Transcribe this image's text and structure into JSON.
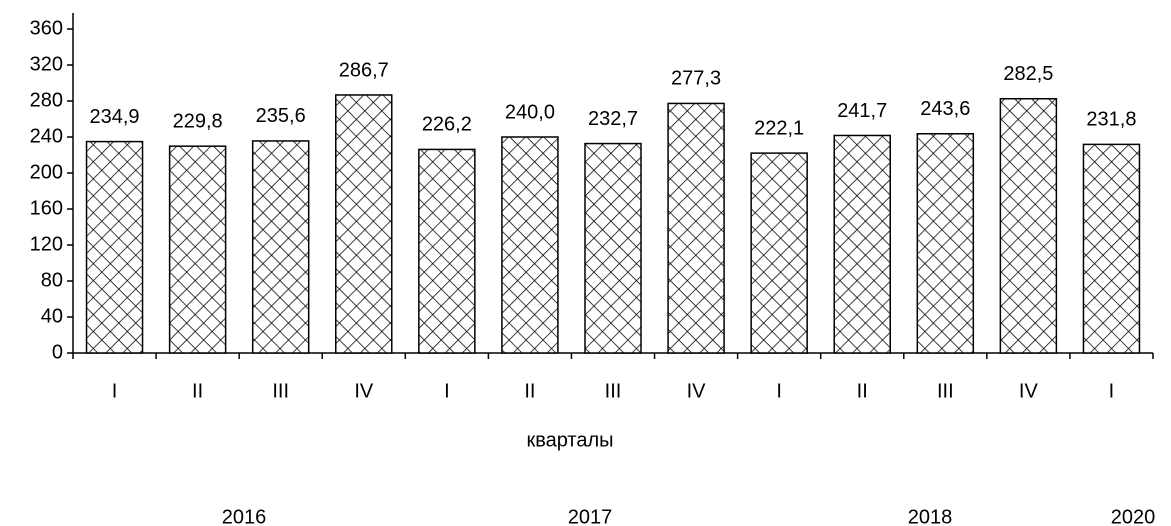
{
  "chart_data": {
    "type": "bar",
    "categories": [
      "I",
      "II",
      "III",
      "IV",
      "I",
      "II",
      "III",
      "IV",
      "I",
      "II",
      "III",
      "IV",
      "I"
    ],
    "values": [
      234.9,
      229.8,
      235.6,
      286.7,
      226.2,
      240.0,
      232.7,
      277.3,
      222.1,
      241.7,
      243.6,
      282.5,
      231.8
    ],
    "value_labels": [
      "234,9",
      "229,8",
      "235,6",
      "286,7",
      "226,2",
      "240,0",
      "232,7",
      "277,3",
      "222,1",
      "241,7",
      "243,6",
      "282,5",
      "231,8"
    ],
    "x_label": "кварталы",
    "group_labels": [
      "2016",
      "2017",
      "2018",
      "2020"
    ],
    "color": "#000000",
    "ylim": [
      0,
      360
    ],
    "yticks": [
      0,
      40,
      80,
      120,
      160,
      200,
      240,
      280,
      320,
      360
    ],
    "grid": false
  }
}
